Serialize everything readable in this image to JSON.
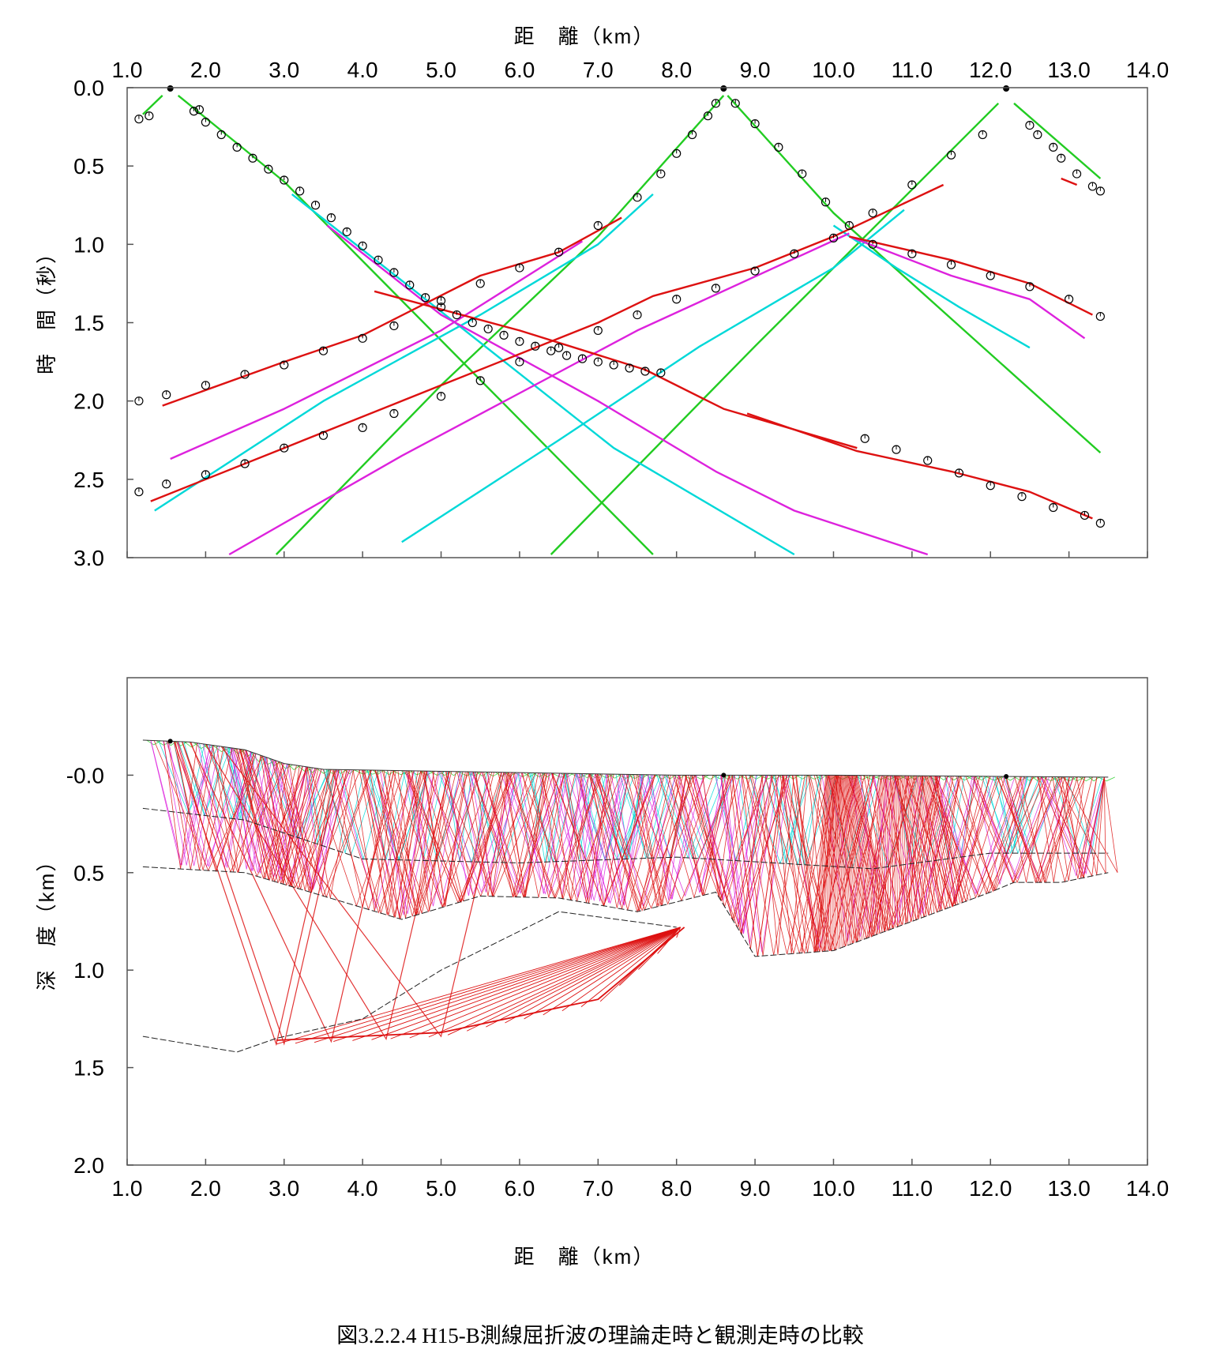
{
  "caption": "図3.2.2.4 H15-B測線屈折波の理論走時と観測走時の比較",
  "chart_data": [
    {
      "type": "line",
      "name": "travel-time",
      "xlabel_top": "距　離（km）",
      "ylabel": "時　間（秒）",
      "xlim": [
        1.0,
        14.0
      ],
      "ylim": [
        0.0,
        3.0
      ],
      "y_inverted": true,
      "x_ticks": [
        "1.0",
        "2.0",
        "3.0",
        "4.0",
        "5.0",
        "6.0",
        "7.0",
        "8.0",
        "9.0",
        "10.0",
        "11.0",
        "12.0",
        "13.0",
        "14.0"
      ],
      "y_ticks": [
        "0.0",
        "0.5",
        "1.0",
        "1.5",
        "2.0",
        "2.5",
        "3.0"
      ],
      "grid": false,
      "shots": [
        {
          "x": 1.55,
          "y": 0.0
        },
        {
          "x": 8.6,
          "y": 0.0
        },
        {
          "x": 12.2,
          "y": 0.0
        }
      ],
      "series": [
        {
          "color": "#22cc22",
          "x": [
            1.2,
            1.45
          ],
          "y": [
            0.17,
            0.05
          ]
        },
        {
          "color": "#22cc22",
          "x": [
            1.65,
            3.0,
            7.7
          ],
          "y": [
            0.05,
            0.6,
            2.98
          ]
        },
        {
          "color": "#22cc22",
          "x": [
            2.9,
            5.0,
            7.0,
            8.6
          ],
          "y": [
            2.98,
            1.9,
            0.95,
            0.05
          ]
        },
        {
          "color": "#22cc22",
          "x": [
            8.65,
            10.0,
            13.4
          ],
          "y": [
            0.05,
            0.8,
            2.33
          ]
        },
        {
          "color": "#22cc22",
          "x": [
            6.4,
            9.0,
            12.1
          ],
          "y": [
            2.98,
            1.65,
            0.1
          ]
        },
        {
          "color": "#22cc22",
          "x": [
            12.3,
            13.4
          ],
          "y": [
            0.1,
            0.58
          ]
        },
        {
          "color": "#00d8d8",
          "x": [
            3.1,
            4.8,
            7.2,
            9.5
          ],
          "y": [
            0.68,
            1.35,
            2.3,
            2.98
          ]
        },
        {
          "color": "#00d8d8",
          "x": [
            1.35,
            3.5,
            5.5,
            7.0,
            7.7
          ],
          "y": [
            2.7,
            2.0,
            1.45,
            1.0,
            0.68
          ]
        },
        {
          "color": "#00d8d8",
          "x": [
            4.5,
            6.5,
            8.3,
            10.0,
            10.9
          ],
          "y": [
            2.9,
            2.25,
            1.65,
            1.15,
            0.78
          ]
        },
        {
          "color": "#00d8d8",
          "x": [
            10.0,
            10.8,
            11.6,
            12.5
          ],
          "y": [
            0.88,
            1.15,
            1.4,
            1.66
          ]
        },
        {
          "color": "#dd22dd",
          "x": [
            3.55,
            5.0,
            7.0,
            8.5,
            9.5,
            11.2
          ],
          "y": [
            0.88,
            1.45,
            2.0,
            2.45,
            2.7,
            2.98
          ]
        },
        {
          "color": "#dd22dd",
          "x": [
            1.55,
            3.0,
            5.0,
            6.8
          ],
          "y": [
            2.37,
            2.05,
            1.55,
            0.98
          ]
        },
        {
          "color": "#dd22dd",
          "x": [
            2.3,
            4.5,
            7.5,
            10.2
          ],
          "y": [
            2.98,
            2.35,
            1.55,
            0.93
          ]
        },
        {
          "color": "#dd22dd",
          "x": [
            10.2,
            11.5,
            12.5,
            13.2
          ],
          "y": [
            0.95,
            1.2,
            1.35,
            1.6
          ]
        },
        {
          "color": "#dd1111",
          "x": [
            1.45,
            3.0,
            4.0,
            5.5,
            6.5,
            7.3
          ],
          "y": [
            2.03,
            1.75,
            1.58,
            1.2,
            1.05,
            0.83
          ]
        },
        {
          "color": "#dd1111",
          "x": [
            1.3,
            3.0,
            5.0,
            7.0,
            7.7,
            9.0,
            10.0,
            11.4
          ],
          "y": [
            2.64,
            2.3,
            1.9,
            1.5,
            1.33,
            1.15,
            0.95,
            0.62
          ]
        },
        {
          "color": "#dd1111",
          "x": [
            4.15,
            6.0,
            7.6,
            8.6,
            10.3
          ],
          "y": [
            1.3,
            1.55,
            1.8,
            2.05,
            2.3
          ]
        },
        {
          "color": "#dd1111",
          "x": [
            10.2,
            11.5,
            12.5,
            13.3
          ],
          "y": [
            0.95,
            1.1,
            1.25,
            1.45
          ]
        },
        {
          "color": "#dd1111",
          "x": [
            8.9,
            10.3,
            11.5,
            12.5,
            13.3
          ],
          "y": [
            2.08,
            2.32,
            2.45,
            2.58,
            2.75
          ]
        },
        {
          "color": "#dd1111",
          "x": [
            12.9,
            13.1
          ],
          "y": [
            0.58,
            0.62
          ]
        }
      ],
      "observed": [
        {
          "x": [
            1.15,
            1.28,
            1.85,
            1.92,
            2.0,
            2.2,
            2.4,
            2.6,
            2.8,
            3.0,
            3.2,
            3.4,
            3.6,
            3.8,
            4.0,
            4.2,
            4.4,
            4.6,
            4.8,
            5.0,
            5.2,
            5.4,
            5.6,
            5.8,
            6.0,
            6.2,
            6.4,
            6.6,
            6.8,
            7.0,
            7.2,
            7.4,
            7.6,
            7.8
          ],
          "y": [
            0.2,
            0.18,
            0.15,
            0.14,
            0.22,
            0.3,
            0.38,
            0.45,
            0.52,
            0.59,
            0.66,
            0.75,
            0.83,
            0.92,
            1.01,
            1.1,
            1.18,
            1.26,
            1.34,
            1.4,
            1.45,
            1.5,
            1.54,
            1.58,
            1.62,
            1.65,
            1.68,
            1.71,
            1.73,
            1.75,
            1.77,
            1.79,
            1.81,
            1.82
          ]
        },
        {
          "x": [
            1.15,
            1.5,
            2.0,
            2.5,
            3.0,
            3.5,
            4.0,
            4.4,
            5.0,
            5.5,
            6.0,
            6.5,
            7.0,
            7.5,
            7.8,
            8.0,
            8.2,
            8.4,
            8.5
          ],
          "y": [
            2.0,
            1.96,
            1.9,
            1.83,
            1.77,
            1.68,
            1.6,
            1.52,
            1.36,
            1.25,
            1.15,
            1.05,
            0.88,
            0.7,
            0.55,
            0.42,
            0.3,
            0.18,
            0.1
          ]
        },
        {
          "x": [
            1.15,
            1.5,
            2.0,
            2.5,
            3.0,
            3.5,
            4.0,
            4.4,
            5.0,
            5.5,
            6.0,
            6.5,
            7.0,
            7.5,
            8.0,
            8.5,
            9.0,
            9.5,
            10.0,
            10.5,
            11.0,
            11.5,
            11.9
          ],
          "y": [
            2.58,
            2.53,
            2.47,
            2.4,
            2.3,
            2.22,
            2.17,
            2.08,
            1.97,
            1.87,
            1.75,
            1.66,
            1.55,
            1.45,
            1.35,
            1.28,
            1.17,
            1.06,
            0.96,
            0.8,
            0.62,
            0.43,
            0.3
          ]
        },
        {
          "x": [
            8.75,
            9.0,
            9.3,
            9.6,
            9.9,
            10.2,
            10.5,
            11.0,
            11.5,
            12.0,
            12.5,
            13.0,
            13.4
          ],
          "y": [
            0.1,
            0.23,
            0.38,
            0.55,
            0.73,
            0.88,
            1.0,
            1.06,
            1.13,
            1.2,
            1.27,
            1.35,
            1.46
          ]
        },
        {
          "x": [
            12.5,
            12.6,
            12.8,
            12.9,
            13.1,
            13.3,
            13.4
          ],
          "y": [
            0.24,
            0.3,
            0.38,
            0.45,
            0.55,
            0.63,
            0.66
          ]
        },
        {
          "x": [
            10.4,
            10.8,
            11.2,
            11.6,
            12.0,
            12.4,
            12.8,
            13.2,
            13.4
          ],
          "y": [
            2.24,
            2.31,
            2.38,
            2.46,
            2.54,
            2.61,
            2.68,
            2.73,
            2.78
          ]
        }
      ]
    },
    {
      "type": "line",
      "name": "ray-paths",
      "xlabel": "距　離（km）",
      "ylabel": "深　度（km）",
      "xlim": [
        1.0,
        14.0
      ],
      "ylim": [
        -0.5,
        2.0
      ],
      "y_inverted": true,
      "x_ticks": [
        "1.0",
        "2.0",
        "3.0",
        "4.0",
        "5.0",
        "6.0",
        "7.0",
        "8.0",
        "9.0",
        "10.0",
        "11.0",
        "12.0",
        "13.0",
        "14.0"
      ],
      "y_ticks": [
        "-0.0",
        "0.5",
        "1.0",
        "1.5",
        "2.0"
      ],
      "grid": false,
      "ray_colors": {
        "layer1": "#22cc22",
        "layer2": "#00d8d8",
        "layer3": "#dd22dd",
        "layer4": "#dd1111"
      },
      "surface": {
        "x": [
          1.2,
          1.8,
          2.5,
          3.0,
          3.5,
          5.0,
          8.0,
          10.0,
          13.5
        ],
        "y": [
          -0.18,
          -0.17,
          -0.13,
          -0.06,
          -0.03,
          -0.02,
          0.0,
          0.0,
          0.01
        ]
      },
      "boundaries": [
        {
          "x": [
            1.2,
            2.5,
            4.0,
            6.0,
            8.0,
            10.5,
            12.0,
            13.5
          ],
          "y": [
            0.17,
            0.23,
            0.43,
            0.45,
            0.42,
            0.48,
            0.4,
            0.4
          ]
        },
        {
          "x": [
            1.2,
            2.5,
            3.5,
            4.5,
            5.5,
            6.5,
            7.5,
            8.5,
            9.0,
            10.0,
            11.0,
            12.0,
            12.3,
            12.9,
            13.5
          ],
          "y": [
            0.47,
            0.5,
            0.62,
            0.74,
            0.62,
            0.63,
            0.7,
            0.6,
            0.93,
            0.9,
            0.75,
            0.6,
            0.55,
            0.55,
            0.5
          ]
        },
        {
          "x": [
            1.2,
            2.4,
            2.9,
            4.0,
            5.0,
            6.5,
            8.0
          ],
          "y": [
            1.34,
            1.42,
            1.35,
            1.25,
            1.0,
            0.7,
            0.78
          ]
        }
      ],
      "deep_reflector": {
        "x": [
          2.9,
          5.0,
          7.0,
          8.1
        ],
        "y": [
          1.36,
          1.32,
          1.15,
          0.78
        ]
      },
      "sources": [
        1.55,
        8.6,
        12.2
      ]
    }
  ]
}
